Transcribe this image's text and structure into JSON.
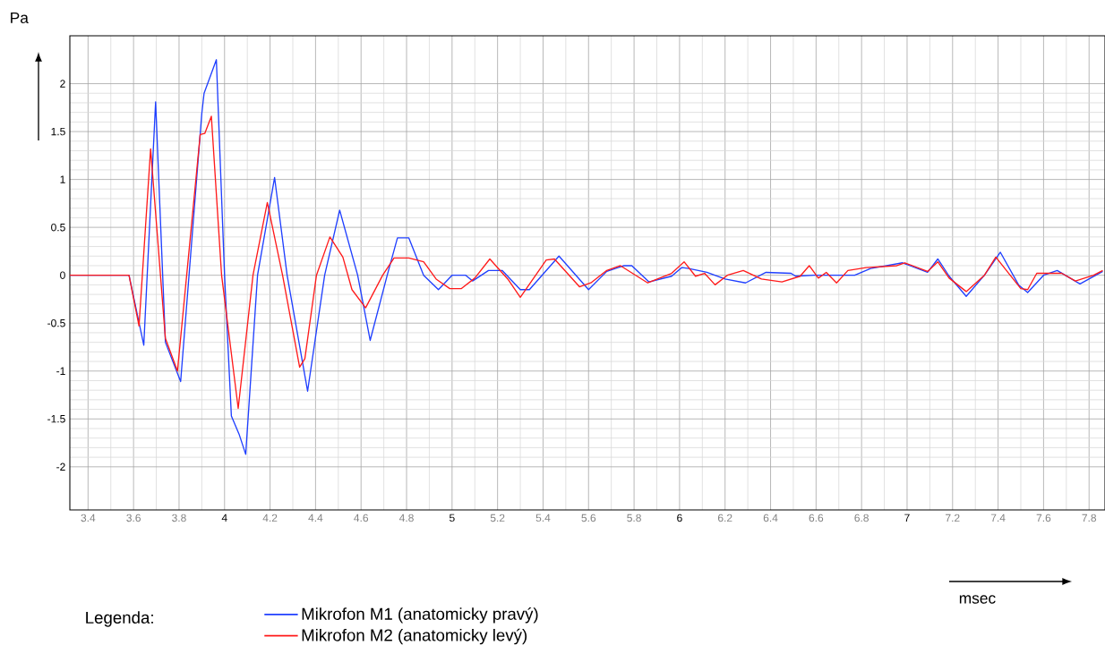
{
  "chart_data": {
    "type": "line",
    "xlabel": "msec",
    "ylabel": "Pa",
    "legend_title": "Legenda:",
    "legend": "bottom left",
    "grid": true,
    "xlim": [
      3.32,
      7.87
    ],
    "ylim": [
      -2.45,
      2.5
    ],
    "xticks": [
      3.4,
      3.6,
      3.8,
      4,
      4.2,
      4.4,
      4.6,
      4.8,
      5,
      5.2,
      5.4,
      5.6,
      5.8,
      6,
      6.2,
      6.4,
      6.6,
      6.8,
      7,
      7.2,
      7.4,
      7.6,
      7.8
    ],
    "yticks": [
      -2,
      -1.5,
      -1,
      -0.5,
      0,
      0.5,
      1,
      1.5,
      2
    ],
    "series": [
      {
        "name": "Mikrofon M1 (anatomicky pravý)",
        "color": "#1f3fff",
        "x": [
          3.32,
          3.58,
          3.645,
          3.697,
          3.74,
          3.807,
          3.9,
          3.91,
          3.964,
          4.0,
          4.03,
          4.064,
          4.093,
          4.145,
          4.22,
          4.275,
          4.365,
          4.44,
          4.506,
          4.585,
          4.64,
          4.715,
          4.76,
          4.81,
          4.875,
          4.94,
          5.0,
          5.06,
          5.09,
          5.16,
          5.22,
          5.3,
          5.34,
          5.47,
          5.6,
          5.68,
          5.756,
          5.79,
          5.866,
          5.965,
          6.01,
          6.04,
          6.12,
          6.2,
          6.29,
          6.38,
          6.49,
          6.51,
          6.59,
          6.77,
          6.84,
          6.98,
          7.09,
          7.135,
          7.185,
          7.26,
          7.34,
          7.41,
          7.49,
          7.53,
          7.6,
          7.66,
          7.76,
          7.86
        ],
        "values": [
          0,
          0,
          -0.73,
          1.81,
          -0.7,
          -1.11,
          1.69,
          1.9,
          2.25,
          0,
          -1.47,
          -1.66,
          -1.87,
          0,
          1.02,
          0,
          -1.21,
          0,
          0.68,
          0,
          -0.68,
          0,
          0.39,
          0.39,
          0,
          -0.15,
          0,
          0,
          -0.06,
          0.05,
          0.05,
          -0.15,
          -0.15,
          0.2,
          -0.15,
          0.04,
          0.1,
          0.1,
          -0.07,
          -0.01,
          0.08,
          0.07,
          0.03,
          -0.04,
          -0.08,
          0.03,
          0.02,
          -0.01,
          0,
          0,
          0.07,
          0.13,
          0.03,
          0.17,
          -0.01,
          -0.22,
          0,
          0.24,
          -0.1,
          -0.18,
          0,
          0.05,
          -0.09,
          0.04
        ]
      },
      {
        "name": "Mikrofon M2 (anatomicky levý)",
        "color": "#ff1a1a",
        "x": [
          3.32,
          3.58,
          3.624,
          3.675,
          3.74,
          3.793,
          3.893,
          3.913,
          3.942,
          3.987,
          4.06,
          4.125,
          4.188,
          4.255,
          4.33,
          4.353,
          4.404,
          4.463,
          4.52,
          4.56,
          4.62,
          4.695,
          4.745,
          4.81,
          4.875,
          4.93,
          4.99,
          5.04,
          5.1,
          5.166,
          5.245,
          5.3,
          5.414,
          5.45,
          5.56,
          5.61,
          5.68,
          5.74,
          5.86,
          5.965,
          6.02,
          6.07,
          6.11,
          6.156,
          6.21,
          6.28,
          6.36,
          6.45,
          6.53,
          6.57,
          6.61,
          6.645,
          6.69,
          6.74,
          6.82,
          6.955,
          6.99,
          7.09,
          7.135,
          7.185,
          7.26,
          7.34,
          7.39,
          7.5,
          7.53,
          7.57,
          7.68,
          7.74,
          7.82,
          7.86
        ],
        "values": [
          0,
          0,
          -0.53,
          1.32,
          -0.66,
          -1.0,
          1.47,
          1.48,
          1.66,
          0,
          -1.39,
          0,
          0.76,
          0,
          -0.96,
          -0.87,
          0,
          0.4,
          0.19,
          -0.15,
          -0.34,
          0,
          0.18,
          0.18,
          0.14,
          -0.04,
          -0.14,
          -0.14,
          -0.03,
          0.17,
          -0.04,
          -0.23,
          0.16,
          0.17,
          -0.12,
          -0.08,
          0.05,
          0.1,
          -0.08,
          0.02,
          0.14,
          -0.01,
          0.02,
          -0.1,
          0,
          0.05,
          -0.04,
          -0.07,
          -0.01,
          0.1,
          -0.03,
          0.03,
          -0.08,
          0.05,
          0.08,
          0.1,
          0.13,
          0.04,
          0.14,
          -0.03,
          -0.17,
          0,
          0.19,
          -0.14,
          -0.15,
          0.02,
          0.02,
          -0.06,
          0,
          0.05
        ]
      }
    ]
  }
}
